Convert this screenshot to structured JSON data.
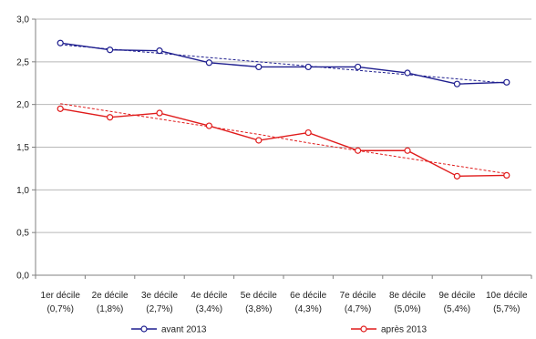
{
  "chart_data": {
    "type": "line",
    "title": "",
    "xlabel": "",
    "ylabel": "",
    "ylim": [
      0,
      3.0
    ],
    "y_ticks": [
      "0,0",
      "0,5",
      "1,0",
      "1,5",
      "2,0",
      "2,5",
      "3,0"
    ],
    "y_tick_values": [
      0,
      0.5,
      1.0,
      1.5,
      2.0,
      2.5,
      3.0
    ],
    "categories": [
      [
        "1er décile",
        "(0,7%)"
      ],
      [
        "2e décile",
        "(1,8%)"
      ],
      [
        "3e décile",
        "(2,7%)"
      ],
      [
        "4e décile",
        "(3,4%)"
      ],
      [
        "5e décile",
        "(3,8%)"
      ],
      [
        "6e décile",
        "(4,3%)"
      ],
      [
        "7e décile",
        "(4,7%)"
      ],
      [
        "8e décile",
        "(5,0%)"
      ],
      [
        "9e décile",
        "(5,4%)"
      ],
      [
        "10e décile",
        "(5,7%)"
      ]
    ],
    "grid": true,
    "legend_position": "bottom",
    "series": [
      {
        "name": "avant 2013",
        "color": "#1f1f8f",
        "values": [
          2.72,
          2.64,
          2.63,
          2.49,
          2.44,
          2.44,
          2.44,
          2.37,
          2.24,
          2.26
        ],
        "trend": [
          2.7,
          2.65,
          2.6,
          2.55,
          2.5,
          2.45,
          2.4,
          2.35,
          2.3,
          2.25
        ]
      },
      {
        "name": "après 2013",
        "color": "#e01b1b",
        "values": [
          1.95,
          1.85,
          1.9,
          1.75,
          1.58,
          1.67,
          1.46,
          1.46,
          1.16,
          1.17
        ],
        "trend": [
          2.01,
          1.92,
          1.83,
          1.74,
          1.65,
          1.55,
          1.46,
          1.37,
          1.28,
          1.19
        ]
      }
    ]
  }
}
